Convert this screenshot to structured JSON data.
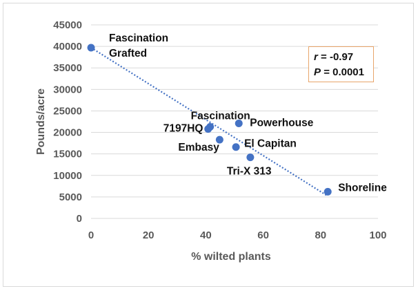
{
  "chart_data": {
    "type": "scatter",
    "title": "",
    "xlabel": "% wilted plants",
    "ylabel": "Pounds/acre",
    "xlim": [
      0,
      100
    ],
    "ylim": [
      0,
      45000
    ],
    "x_ticks": [
      0,
      20,
      40,
      60,
      80,
      100
    ],
    "y_ticks": [
      0,
      5000,
      10000,
      15000,
      20000,
      25000,
      30000,
      35000,
      40000,
      45000
    ],
    "grid": "horizontal",
    "points": [
      {
        "name": "Fascination Grafted",
        "label_lines": [
          "Fascination",
          "Grafted"
        ],
        "x": 0,
        "y": 39700
      },
      {
        "name": "Fascination",
        "label_lines": [
          "Fascination"
        ],
        "x": 41.5,
        "y": 21300
      },
      {
        "name": "7197HQ",
        "label_lines": [
          "7197HQ"
        ],
        "x": 40.8,
        "y": 20800
      },
      {
        "name": "Powerhouse",
        "label_lines": [
          "Powerhouse"
        ],
        "x": 51.5,
        "y": 22100
      },
      {
        "name": "Embasy",
        "label_lines": [
          "Embasy"
        ],
        "x": 44.8,
        "y": 18300
      },
      {
        "name": "El Capitan",
        "label_lines": [
          "El Capitan"
        ],
        "x": 50.5,
        "y": 16600
      },
      {
        "name": "Tri-X 313",
        "label_lines": [
          "Tri-X 313"
        ],
        "x": 55.5,
        "y": 14200
      },
      {
        "name": "Shoreline",
        "label_lines": [
          "Shoreline"
        ],
        "x": 82.5,
        "y": 6200
      }
    ],
    "trendline": {
      "style": "dotted",
      "x": [
        0,
        82.5
      ],
      "y": [
        39700,
        5200
      ]
    },
    "series_color": "#4472c4",
    "stats": {
      "r_symbol": "r",
      "r_value": "= -0.97",
      "p_symbol": "P",
      "p_value": "= 0.0001"
    }
  }
}
